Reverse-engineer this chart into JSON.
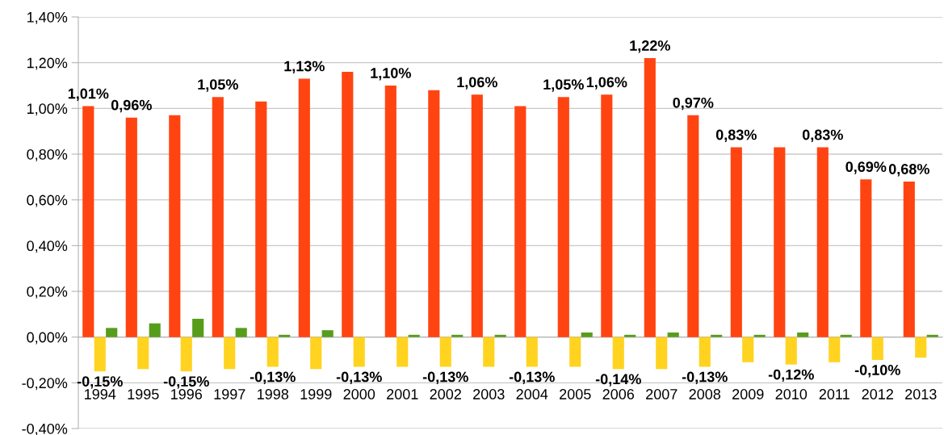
{
  "chart_data": {
    "type": "bar",
    "categories": [
      "1994",
      "1995",
      "1996",
      "1997",
      "1998",
      "1999",
      "2000",
      "2001",
      "2002",
      "2003",
      "2004",
      "2005",
      "2006",
      "2007",
      "2008",
      "2009",
      "2010",
      "2011",
      "2012",
      "2013"
    ],
    "series": [
      {
        "color": "#ff4412",
        "values": [
          1.01,
          0.96,
          0.97,
          1.05,
          1.03,
          1.13,
          1.16,
          1.1,
          1.08,
          1.06,
          1.01,
          1.05,
          1.06,
          1.22,
          0.97,
          0.83,
          0.83,
          0.83,
          0.69,
          0.68
        ],
        "value_labels": [
          "1,01%",
          "0,96%",
          null,
          "1,05%",
          null,
          "1,13%",
          null,
          "1,10%",
          null,
          "1,06%",
          null,
          "1,05%",
          "1,06%",
          "1,22%",
          "0,97%",
          "0,83%",
          null,
          "0,83%",
          "0,69%",
          "0,68%"
        ]
      },
      {
        "color": "#ffd320",
        "values": [
          -0.15,
          -0.14,
          -0.15,
          -0.14,
          -0.13,
          -0.14,
          -0.13,
          -0.13,
          -0.13,
          -0.13,
          -0.13,
          -0.13,
          -0.14,
          -0.14,
          -0.13,
          -0.11,
          -0.12,
          -0.11,
          -0.1,
          -0.09
        ],
        "value_labels": [
          "-0,15%",
          null,
          "-0,15%",
          null,
          "-0,13%",
          null,
          "-0,13%",
          null,
          "-0,13%",
          null,
          "-0,13%",
          null,
          "-0,14%",
          null,
          "-0,13%",
          null,
          "-0,12%",
          null,
          "-0,10%",
          null
        ]
      },
      {
        "color": "#579d1c",
        "values": [
          0.04,
          0.06,
          0.08,
          0.04,
          0.01,
          0.03,
          0.0,
          0.01,
          0.01,
          0.01,
          0.0,
          0.02,
          0.01,
          0.02,
          0.01,
          0.01,
          0.02,
          0.01,
          0.0,
          0.01
        ]
      }
    ],
    "ylim": [
      -0.4,
      1.4
    ],
    "yticks": [
      {
        "value": -0.4,
        "label": "-0,40%"
      },
      {
        "value": -0.2,
        "label": "-0,20%"
      },
      {
        "value": 0,
        "label": "0,00%"
      },
      {
        "value": 0.2,
        "label": "0,20%"
      },
      {
        "value": 0.4,
        "label": "0,40%"
      },
      {
        "value": 0.6,
        "label": "0,60%"
      },
      {
        "value": 0.8,
        "label": "0,80%"
      },
      {
        "value": 1.0,
        "label": "1,00%"
      },
      {
        "value": 1.2,
        "label": "1,20%"
      },
      {
        "value": 1.4,
        "label": "1,40%"
      }
    ],
    "grid": "y",
    "legend": false
  }
}
